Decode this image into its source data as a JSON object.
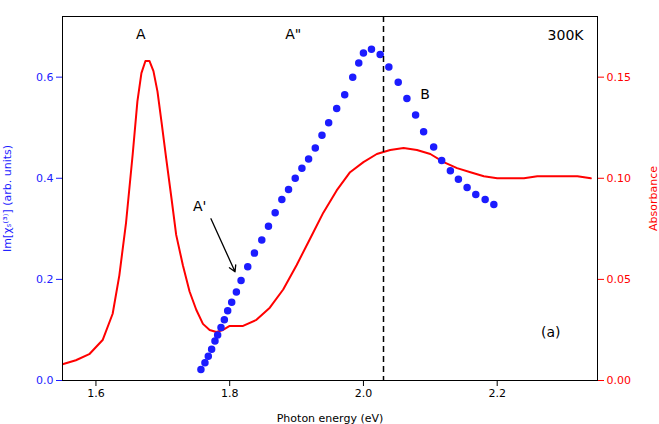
{
  "chart_data": {
    "type": "line",
    "title": "300K",
    "xlabel": "Photon energy (eV)",
    "ylabel": "Im[χₛ⁽³⁾] (arb. units)",
    "y2label": "Absorbance",
    "xlim": [
      1.55,
      2.35
    ],
    "xticks": [
      1.6,
      1.8,
      {
        "value": 2.0,
        "label": "2.0"
      },
      2.2
    ],
    "ylim": [
      0.0,
      0.72
    ],
    "yticks": [
      {
        "value": 0.0,
        "label": "0.0"
      },
      0.2,
      0.4,
      0.6
    ],
    "y2lim": [
      0.0,
      0.18
    ],
    "y2ticks": [
      {
        "value": 0.0,
        "label": "0.00"
      },
      0.05,
      {
        "value": 0.1,
        "label": "0.10"
      },
      0.15
    ],
    "grid": false,
    "series": [
      {
        "type": "line",
        "axis": "y2",
        "color": "#ff0000",
        "x": [
          1.55,
          1.57,
          1.59,
          1.61,
          1.625,
          1.635,
          1.645,
          1.655,
          1.662,
          1.668,
          1.674,
          1.68,
          1.686,
          1.692,
          1.698,
          1.705,
          1.713,
          1.72,
          1.73,
          1.74,
          1.75,
          1.76,
          1.77,
          1.78,
          1.79,
          1.8,
          1.82,
          1.84,
          1.86,
          1.88,
          1.9,
          1.92,
          1.94,
          1.96,
          1.98,
          2.0,
          2.02,
          2.04,
          2.06,
          2.08,
          2.1,
          2.12,
          2.14,
          2.16,
          2.18,
          2.2,
          2.22,
          2.24,
          2.26,
          2.28,
          2.3,
          2.32,
          2.34
        ],
        "values": [
          0.008,
          0.01,
          0.013,
          0.02,
          0.033,
          0.052,
          0.078,
          0.112,
          0.138,
          0.152,
          0.158,
          0.158,
          0.153,
          0.143,
          0.128,
          0.11,
          0.09,
          0.072,
          0.057,
          0.044,
          0.035,
          0.028,
          0.025,
          0.024,
          0.025,
          0.027,
          0.027,
          0.03,
          0.036,
          0.045,
          0.057,
          0.07,
          0.083,
          0.094,
          0.103,
          0.108,
          0.112,
          0.114,
          0.115,
          0.114,
          0.112,
          0.108,
          0.105,
          0.103,
          0.101,
          0.1,
          0.1,
          0.1,
          0.101,
          0.101,
          0.101,
          0.101,
          0.1
        ]
      },
      {
        "type": "scatter",
        "marker": "circle",
        "color": "#1c1cff",
        "x": [
          1.757,
          1.763,
          1.768,
          1.773,
          1.778,
          1.782,
          1.787,
          1.792,
          1.797,
          1.803,
          1.81,
          1.817,
          1.827,
          1.837,
          1.848,
          1.858,
          1.868,
          1.878,
          1.888,
          1.898,
          1.908,
          1.918,
          1.928,
          1.938,
          1.948,
          1.96,
          1.972,
          1.984,
          1.993,
          2.0,
          2.012,
          2.025,
          2.038,
          2.052,
          2.065,
          2.078,
          2.09,
          2.105,
          2.117,
          2.13,
          2.142,
          2.155,
          2.168,
          2.182,
          2.195
        ],
        "values": [
          0.022,
          0.035,
          0.048,
          0.062,
          0.078,
          0.09,
          0.105,
          0.12,
          0.138,
          0.155,
          0.175,
          0.198,
          0.225,
          0.252,
          0.278,
          0.305,
          0.332,
          0.358,
          0.378,
          0.4,
          0.42,
          0.438,
          0.46,
          0.485,
          0.51,
          0.538,
          0.565,
          0.6,
          0.628,
          0.648,
          0.655,
          0.645,
          0.62,
          0.59,
          0.558,
          0.525,
          0.492,
          0.462,
          0.435,
          0.415,
          0.398,
          0.382,
          0.368,
          0.358,
          0.348
        ]
      }
    ],
    "reference_lines": [
      {
        "x": 2.03,
        "line_style": "dashed"
      }
    ],
    "annotations": [
      {
        "text": "A",
        "x": 1.667,
        "y": 0.685
      },
      {
        "text": "A\"",
        "x": 1.895,
        "y": 0.685
      },
      {
        "text": "A'",
        "x": 1.755,
        "y": 0.345
      },
      {
        "text": "B",
        "x": 2.092,
        "y": 0.565
      },
      {
        "text": "(a)",
        "x": 2.28,
        "y": 0.095
      }
    ],
    "arrows": [
      {
        "x1": 1.772,
        "y1": 0.32,
        "x2": 1.808,
        "y2": 0.215
      }
    ]
  }
}
